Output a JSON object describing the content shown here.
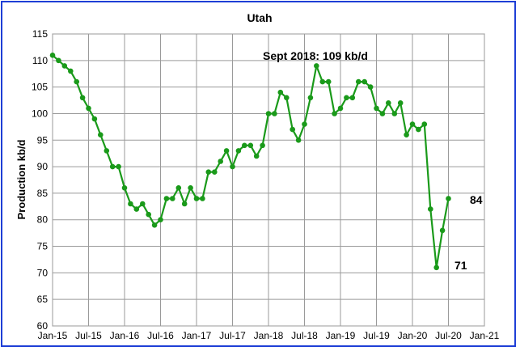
{
  "chart_data": {
    "type": "line",
    "title": "Utah",
    "xlabel": "",
    "ylabel": "Production kb/d",
    "ylim": [
      60,
      115
    ],
    "y_ticks": [
      "60",
      "65",
      "70",
      "75",
      "80",
      "85",
      "90",
      "95",
      "100",
      "105",
      "110",
      "115"
    ],
    "x_tick_labels": [
      "Jan-15",
      "Jul-15",
      "Jan-16",
      "Jul-16",
      "Jan-17",
      "Jul-17",
      "Jan-18",
      "Jul-18",
      "Jan-19",
      "Jul-19",
      "Jan-20",
      "Jul-20",
      "Jan-21"
    ],
    "x_start": "Jan-15",
    "x_end": "Jan-21",
    "grid": true,
    "legend": "none",
    "series_color": "#1a9a1a",
    "series": [
      {
        "values": [
          111,
          110,
          109,
          108,
          106,
          103,
          101,
          99,
          96,
          93,
          90,
          90,
          86,
          83,
          82,
          83,
          81,
          79,
          80,
          84,
          84,
          86,
          83,
          86,
          84,
          84,
          89,
          89,
          91,
          93,
          90,
          93,
          94,
          94,
          92,
          94,
          100,
          100,
          104,
          103,
          97,
          95,
          98,
          103,
          109,
          106,
          106,
          100,
          101,
          103,
          103,
          106,
          106,
          105,
          101,
          100,
          102,
          100,
          102,
          96,
          98,
          97,
          98,
          82,
          71,
          78,
          84
        ]
      }
    ],
    "annotations": [
      {
        "text": "Sept 2018: 109 kb/d"
      },
      {
        "text": "71"
      },
      {
        "text": "84"
      }
    ]
  }
}
